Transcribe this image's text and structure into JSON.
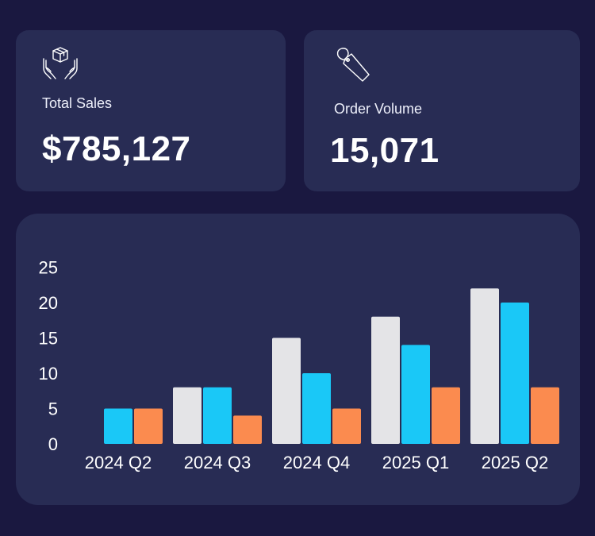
{
  "kpis": {
    "sales": {
      "icon": "hands-holding-box-icon",
      "label": "Total Sales",
      "value": "$785,127"
    },
    "orders": {
      "icon": "price-tag-icon",
      "label": "Order Volume",
      "value": "15,071"
    }
  },
  "colors": {
    "background": "#1a1840",
    "card": "#282c54",
    "series_1": "#e4e4e7",
    "series_2": "#1ac8f7",
    "series_3": "#fb8b4f"
  },
  "chart_data": {
    "type": "bar",
    "categories": [
      "2024 Q2",
      "2024 Q3",
      "2024 Q4",
      "2025 Q1",
      "2025 Q2"
    ],
    "series": [
      {
        "values": [
          0,
          8,
          15,
          18,
          22
        ]
      },
      {
        "values": [
          5,
          8,
          10,
          14,
          20
        ]
      },
      {
        "values": [
          5,
          4,
          5,
          8,
          8
        ]
      }
    ],
    "yticks": [
      0,
      5,
      10,
      15,
      20,
      25
    ],
    "ylim": [
      0,
      25
    ],
    "grid": false,
    "legend": "none",
    "title": "",
    "xlabel": "",
    "ylabel": ""
  }
}
